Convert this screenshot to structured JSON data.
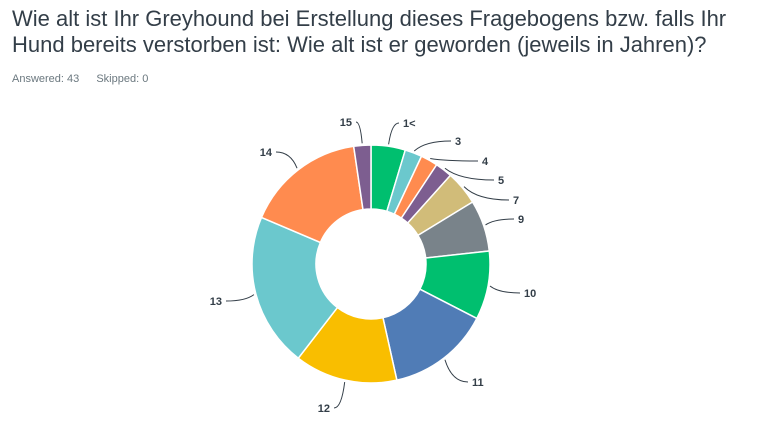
{
  "question": {
    "title": "Wie alt ist Ihr Greyhound bei Erstellung dieses Fragebogens bzw. falls Ihr Hund bereits verstorben ist: Wie alt ist er geworden (jeweils in Jahren)?",
    "answered": "Answered: 43",
    "skipped": "Skipped: 0"
  },
  "chart_data": {
    "type": "pie",
    "donut": true,
    "title": "",
    "categories": [
      "1<",
      "3",
      "4",
      "5",
      "7",
      "9",
      "10",
      "11",
      "12",
      "13",
      "14",
      "15"
    ],
    "values": [
      2,
      1,
      1,
      1,
      2,
      3,
      4,
      6,
      6,
      9,
      7,
      1
    ],
    "colors": [
      "#00bf6f",
      "#6bc8cd",
      "#ff8b4f",
      "#7d5e90",
      "#d1bc79",
      "#79838a",
      "#00bf6f",
      "#507cb6",
      "#f9be00",
      "#6bc8cd",
      "#ff8b4f",
      "#7d5e90"
    ],
    "start_angle_deg": 0,
    "direction": "clockwise"
  }
}
